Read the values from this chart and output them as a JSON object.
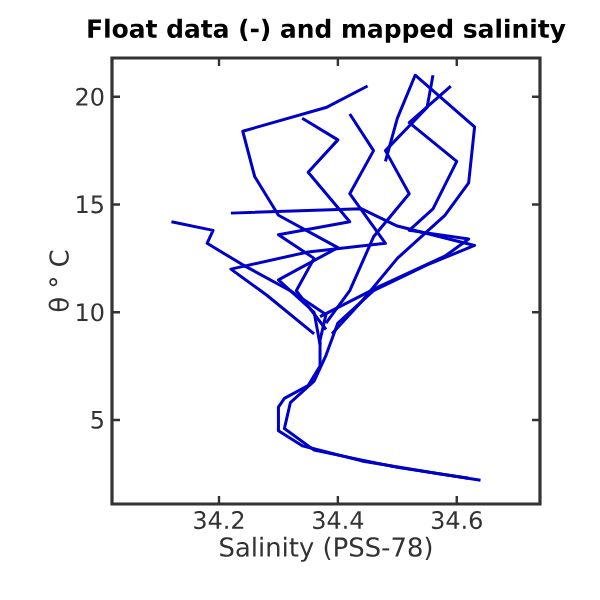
{
  "chart_data": {
    "type": "line",
    "title": "Float data (-) and mapped salinity",
    "xlabel": "Salinity (PSS-78)",
    "ylabel": "θ ° C",
    "xlim": [
      34.02,
      34.74
    ],
    "ylim": [
      1.1,
      21.8
    ],
    "xticks": [
      34.2,
      34.4,
      34.6
    ],
    "yticks": [
      5,
      10,
      15,
      20
    ],
    "grid": false,
    "marker": "none",
    "line_style": "solid",
    "series": [
      {
        "color": "#0000c8",
        "x": [
          34.64,
          34.57,
          34.44,
          34.34,
          34.3,
          34.3,
          34.31,
          34.35,
          34.37,
          34.37,
          34.38,
          34.32,
          34.24,
          34.18,
          34.19,
          34.12
        ],
        "values": [
          2.2,
          2.5,
          3.1,
          3.8,
          4.5,
          5.6,
          6.0,
          6.6,
          7.5,
          8.7,
          9.9,
          11.0,
          12.2,
          13.2,
          13.8,
          14.2
        ]
      },
      {
        "color": "#0000c8",
        "x": [
          34.62,
          34.5,
          34.36,
          34.31,
          34.32,
          34.36,
          34.38,
          34.4,
          34.46,
          34.55,
          34.63,
          34.5,
          34.44,
          34.22
        ],
        "values": [
          2.3,
          2.8,
          3.6,
          4.6,
          5.8,
          6.8,
          8.0,
          9.5,
          11.0,
          12.2,
          13.1,
          14.0,
          14.8,
          14.6
        ]
      },
      {
        "color": "#0000c8",
        "x": [
          34.37,
          34.36,
          34.3,
          34.4,
          34.3,
          34.26,
          34.24,
          34.38,
          34.45
        ],
        "values": [
          8.5,
          10.0,
          11.5,
          13.0,
          14.5,
          16.3,
          18.4,
          19.5,
          20.5
        ]
      },
      {
        "color": "#0000c8",
        "x": [
          34.39,
          34.44,
          34.5,
          34.58,
          34.62,
          34.63,
          34.53,
          34.5,
          34.48
        ],
        "values": [
          9.0,
          10.5,
          12.5,
          14.5,
          16.0,
          18.6,
          21.0,
          19.0,
          17.0
        ]
      },
      {
        "color": "#0000c8",
        "x": [
          34.38,
          34.42,
          34.46,
          34.52,
          34.48,
          34.55,
          34.56
        ],
        "values": [
          9.5,
          11.0,
          13.5,
          15.5,
          17.5,
          19.5,
          21.0
        ]
      },
      {
        "color": "#0000c8",
        "x": [
          34.38,
          34.33,
          34.36,
          34.3,
          34.42,
          34.35,
          34.4,
          34.34
        ],
        "values": [
          9.2,
          11.0,
          12.5,
          13.6,
          14.2,
          16.5,
          18.0,
          19.0
        ]
      },
      {
        "color": "#0000c8",
        "x": [
          34.37,
          34.47,
          34.58,
          34.62,
          34.52,
          34.56,
          34.6,
          34.52,
          34.59
        ],
        "values": [
          9.8,
          11.2,
          12.6,
          13.4,
          13.8,
          14.8,
          17.0,
          18.8,
          20.5
        ]
      },
      {
        "color": "#0000c8",
        "x": [
          34.36,
          34.28,
          34.22,
          34.35,
          34.48,
          34.42,
          34.46,
          34.42
        ],
        "values": [
          9.0,
          10.8,
          12.0,
          12.8,
          13.2,
          15.5,
          17.5,
          19.2
        ]
      }
    ]
  }
}
